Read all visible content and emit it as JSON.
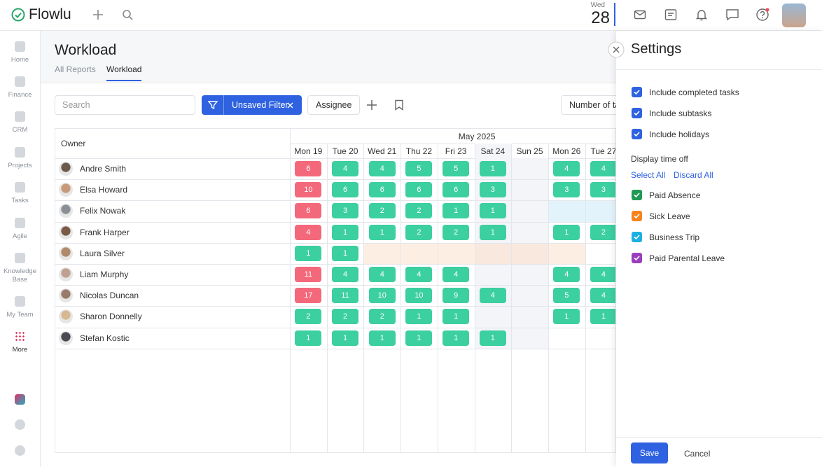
{
  "header": {
    "logo": "Flowlu",
    "weekday": "Wed",
    "day": "28"
  },
  "sidebar": [
    "Home",
    "Finance",
    "CRM",
    "Projects",
    "Tasks",
    "Agile",
    "Knowledge Base",
    "My Team",
    "More"
  ],
  "page": {
    "title": "Workload",
    "tabs": [
      "All Reports",
      "Workload"
    ],
    "active_tab": 1
  },
  "toolbar": {
    "search": "Search",
    "filter": "Unsaved Filter",
    "assignee": "Assignee",
    "group_by": "Number of tasks"
  },
  "table": {
    "owner_header": "Owner",
    "month": "May 2025",
    "days": [
      "Mon 19",
      "Tue 20",
      "Wed 21",
      "Thu 22",
      "Fri 23",
      "Sat 24",
      "Sun 25",
      "Mon 26",
      "Tue 27"
    ],
    "weekend": [
      false,
      false,
      false,
      false,
      false,
      true,
      true,
      false,
      false
    ],
    "rows": [
      {
        "name": "Andre Smith",
        "tasks": [
          6,
          4,
          4,
          5,
          5,
          1,
          null,
          4,
          4
        ],
        "colors": [
          "#f4687b",
          "#3ccf9f",
          "#3ccf9f",
          "#3ccf9f",
          "#3ccf9f",
          "#3ccf9f",
          null,
          "#3ccf9f",
          "#3ccf9f"
        ],
        "time_off": [
          null,
          null,
          null,
          null,
          null,
          null,
          null,
          null,
          null
        ]
      },
      {
        "name": "Elsa Howard",
        "tasks": [
          10,
          6,
          6,
          6,
          6,
          3,
          null,
          3,
          3
        ],
        "colors": [
          "#f4687b",
          "#3ccf9f",
          "#3ccf9f",
          "#3ccf9f",
          "#3ccf9f",
          "#3ccf9f",
          null,
          "#3ccf9f",
          "#3ccf9f"
        ],
        "time_off": [
          null,
          null,
          null,
          null,
          null,
          null,
          null,
          null,
          null
        ]
      },
      {
        "name": "Felix Nowak",
        "tasks": [
          6,
          3,
          2,
          2,
          1,
          1,
          null,
          null,
          null
        ],
        "colors": [
          "#f4687b",
          "#3ccf9f",
          "#3ccf9f",
          "#3ccf9f",
          "#3ccf9f",
          "#3ccf9f",
          null,
          null,
          null
        ],
        "time_off": [
          null,
          null,
          null,
          null,
          null,
          null,
          null,
          "#e3f3fb",
          "#e3f3fb"
        ]
      },
      {
        "name": "Frank Harper",
        "tasks": [
          4,
          1,
          1,
          2,
          2,
          1,
          null,
          1,
          2
        ],
        "colors": [
          "#f4687b",
          "#3ccf9f",
          "#3ccf9f",
          "#3ccf9f",
          "#3ccf9f",
          "#3ccf9f",
          null,
          "#3ccf9f",
          "#3ccf9f"
        ],
        "time_off": [
          null,
          null,
          null,
          null,
          null,
          null,
          null,
          null,
          null
        ]
      },
      {
        "name": "Laura Silver",
        "tasks": [
          1,
          1,
          null,
          null,
          null,
          null,
          null,
          null,
          null
        ],
        "colors": [
          "#3ccf9f",
          "#3ccf9f",
          null,
          null,
          null,
          null,
          null,
          null,
          null
        ],
        "time_off": [
          null,
          null,
          "#fdeee4",
          "#fdeee4",
          "#fdeee4",
          "#f9e8de",
          "#f9e8de",
          "#fdeee4",
          null
        ]
      },
      {
        "name": "Liam Murphy",
        "tasks": [
          11,
          4,
          4,
          4,
          4,
          null,
          null,
          4,
          4
        ],
        "colors": [
          "#f4687b",
          "#3ccf9f",
          "#3ccf9f",
          "#3ccf9f",
          "#3ccf9f",
          null,
          null,
          "#3ccf9f",
          "#3ccf9f"
        ],
        "time_off": [
          null,
          null,
          null,
          null,
          null,
          null,
          null,
          null,
          null
        ]
      },
      {
        "name": "Nicolas Duncan",
        "tasks": [
          17,
          11,
          10,
          10,
          9,
          4,
          null,
          5,
          4
        ],
        "colors": [
          "#f4687b",
          "#3ccf9f",
          "#3ccf9f",
          "#3ccf9f",
          "#3ccf9f",
          "#3ccf9f",
          null,
          "#3ccf9f",
          "#3ccf9f"
        ],
        "time_off": [
          null,
          null,
          null,
          null,
          null,
          null,
          null,
          null,
          null
        ]
      },
      {
        "name": "Sharon Donnelly",
        "tasks": [
          2,
          2,
          2,
          1,
          1,
          null,
          null,
          1,
          1
        ],
        "colors": [
          "#3ccf9f",
          "#3ccf9f",
          "#3ccf9f",
          "#3ccf9f",
          "#3ccf9f",
          null,
          null,
          "#3ccf9f",
          "#3ccf9f"
        ],
        "time_off": [
          null,
          null,
          null,
          null,
          null,
          null,
          null,
          null,
          null
        ]
      },
      {
        "name": "Stefan Kostic",
        "tasks": [
          1,
          1,
          1,
          1,
          1,
          1,
          null,
          null,
          null
        ],
        "colors": [
          "#3ccf9f",
          "#3ccf9f",
          "#3ccf9f",
          "#3ccf9f",
          "#3ccf9f",
          "#3ccf9f",
          null,
          null,
          null
        ],
        "time_off": [
          null,
          null,
          null,
          null,
          null,
          null,
          null,
          null,
          null
        ]
      }
    ]
  },
  "settings": {
    "title": "Settings",
    "options": [
      {
        "label": "Include completed tasks",
        "checked": true
      },
      {
        "label": "Include subtasks",
        "checked": true
      },
      {
        "label": "Include holidays",
        "checked": true
      }
    ],
    "time_off_title": "Display time off",
    "select_all": "Select All",
    "discard_all": "Discard All",
    "time_off": [
      {
        "label": "Paid Absence",
        "color": "#1f9a55",
        "checked": true
      },
      {
        "label": "Sick Leave",
        "color": "#f5841f",
        "checked": true
      },
      {
        "label": "Business Trip",
        "color": "#1cb0e0",
        "checked": true
      },
      {
        "label": "Paid Parental Leave",
        "color": "#9a3fbf",
        "checked": true
      }
    ],
    "save": "Save",
    "cancel": "Cancel"
  }
}
